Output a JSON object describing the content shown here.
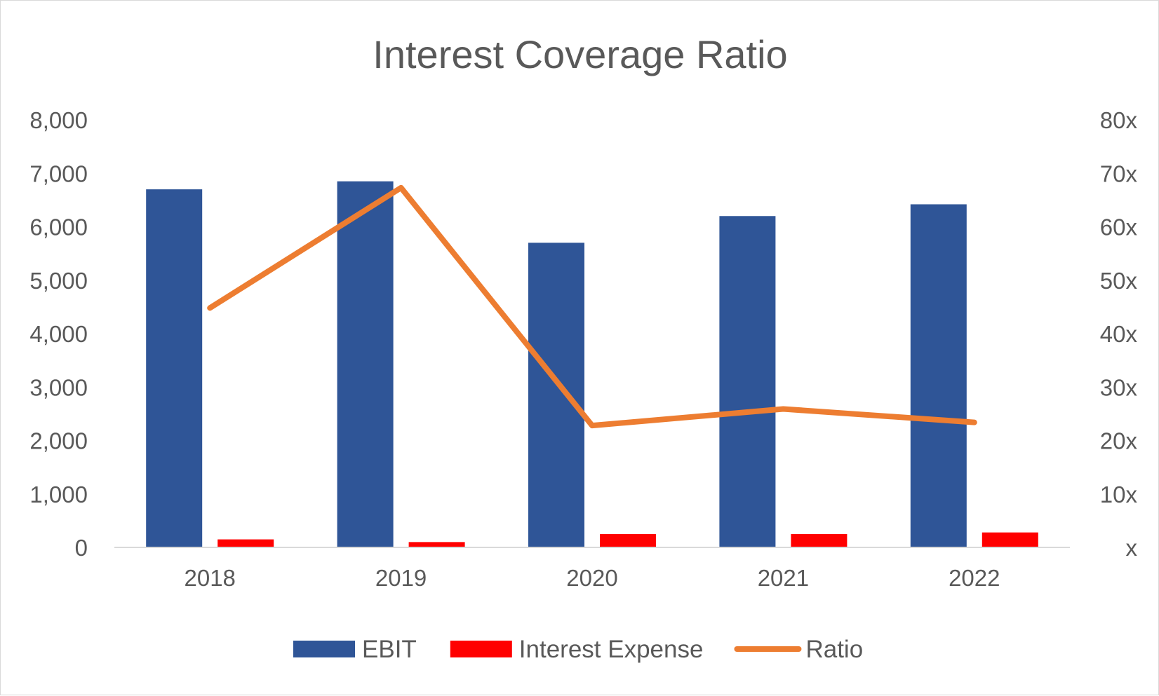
{
  "chart_data": {
    "type": "bar",
    "title": "Interest Coverage Ratio",
    "xlabel": "",
    "ylabel": "",
    "categories": [
      "2018",
      "2019",
      "2020",
      "2021",
      "2022"
    ],
    "series": [
      {
        "name": "EBIT",
        "type": "bar",
        "axis": "left",
        "color": "#2F5597",
        "values": [
          6700,
          6850,
          5700,
          6200,
          6420
        ]
      },
      {
        "name": "Interest Expense",
        "type": "bar",
        "axis": "left",
        "color": "#FF0000",
        "values": [
          150,
          100,
          250,
          250,
          280
        ]
      },
      {
        "name": "Ratio",
        "type": "line",
        "axis": "right",
        "color": "#ED7D31",
        "values": [
          44.8,
          67.3,
          22.8,
          25.9,
          23.4
        ]
      }
    ],
    "ylim": [
      0,
      8000
    ],
    "yticks": [
      "0",
      "1,000",
      "2,000",
      "3,000",
      "4,000",
      "5,000",
      "6,000",
      "7,000",
      "8,000"
    ],
    "y2lim": [
      0,
      80
    ],
    "y2ticks": [
      "x",
      "10x",
      "20x",
      "30x",
      "40x",
      "50x",
      "60x",
      "70x",
      "80x"
    ],
    "grid": false,
    "legend": "bottom"
  }
}
